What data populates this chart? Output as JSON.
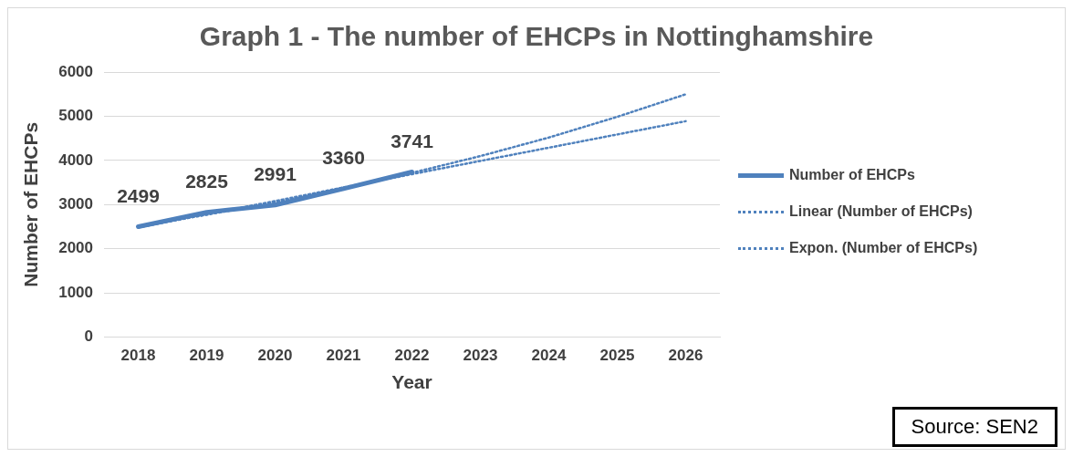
{
  "chart_data": {
    "type": "line",
    "title": "Graph 1 - The number of EHCPs in Nottinghamshire",
    "xlabel": "Year",
    "ylabel": "Number of EHCPs",
    "categories": [
      "2018",
      "2019",
      "2020",
      "2021",
      "2022",
      "2023",
      "2024",
      "2025",
      "2026"
    ],
    "series": [
      {
        "name": "Number of EHCPs",
        "color": "#4f81bd",
        "line_style": "solid",
        "values": [
          2499,
          2825,
          2991,
          3360,
          3741,
          null,
          null,
          null,
          null
        ],
        "value_labels": [
          "2499",
          "2825",
          "2991",
          "3360",
          "3741",
          null,
          null,
          null,
          null
        ]
      },
      {
        "name": "Linear (Number of EHCPs)",
        "color": "#4f81bd",
        "line_style": "dotted",
        "values": [
          2480,
          2780,
          3080,
          3390,
          3690,
          3990,
          4290,
          4590,
          4890
        ]
      },
      {
        "name": "Expon. (Number of EHCPs)",
        "color": "#4f81bd",
        "line_style": "dotted",
        "values": [
          2510,
          2770,
          3050,
          3370,
          3720,
          4100,
          4520,
          4990,
          5500
        ]
      }
    ],
    "ylim": [
      0,
      6000
    ],
    "yticks": [
      0,
      1000,
      2000,
      3000,
      4000,
      5000,
      6000
    ],
    "grid": "y",
    "legend": "right",
    "marker": "none",
    "annotations": [
      "Source: SEN2"
    ]
  }
}
